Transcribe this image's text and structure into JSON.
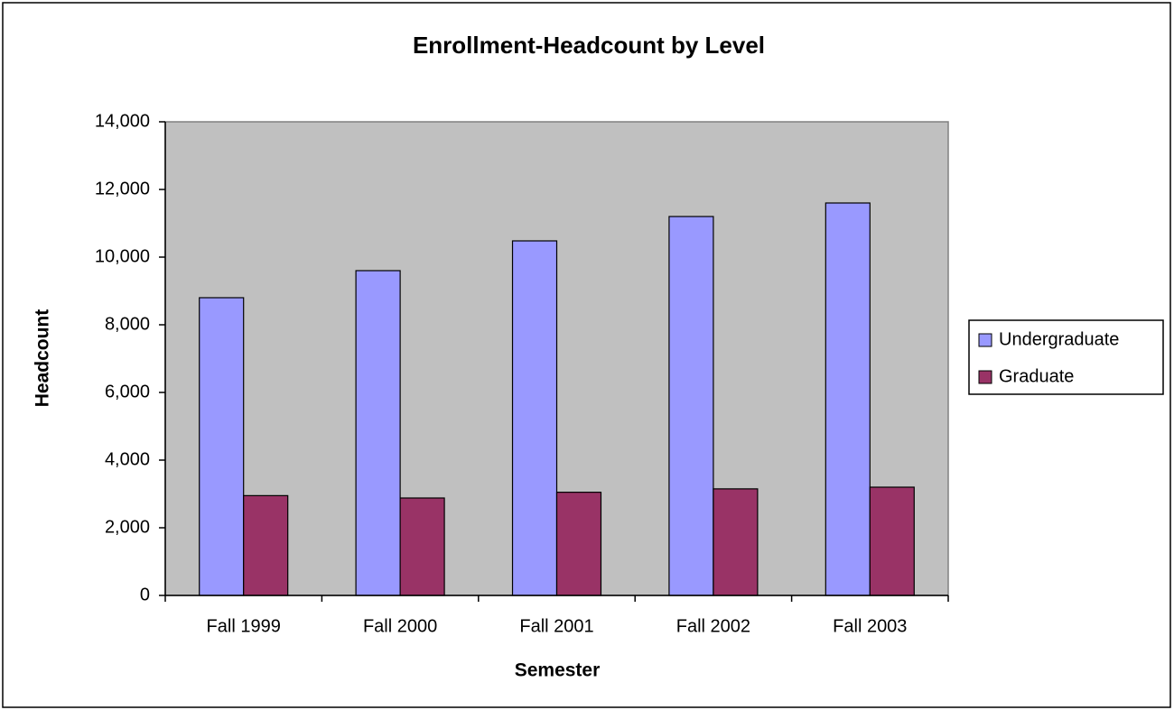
{
  "chart_data": {
    "type": "bar",
    "title": "Enrollment-Headcount by Level",
    "x_label": "Semester",
    "y_label": "Headcount",
    "categories": [
      "Fall 1999",
      "Fall 2000",
      "Fall 2001",
      "Fall 2002",
      "Fall 2003"
    ],
    "series": [
      {
        "name": "Undergraduate",
        "color": "#9999ff",
        "values": [
          8800,
          9600,
          10480,
          11200,
          11600
        ]
      },
      {
        "name": "Graduate",
        "color": "#993366",
        "values": [
          2950,
          2880,
          3050,
          3150,
          3200
        ]
      }
    ],
    "ylim": [
      0,
      14000
    ],
    "yticks": [
      0,
      {
        "value": 2000,
        "label": "2,000"
      },
      {
        "value": 4000,
        "label": "4,000"
      },
      {
        "value": 6000,
        "label": "6,000"
      },
      {
        "value": 8000,
        "label": "8,000"
      },
      {
        "value": 10000,
        "label": "10,000"
      },
      {
        "value": 12000,
        "label": "12,000"
      },
      {
        "value": 14000,
        "label": "14,000"
      }
    ],
    "grid": false,
    "legend": "right"
  }
}
